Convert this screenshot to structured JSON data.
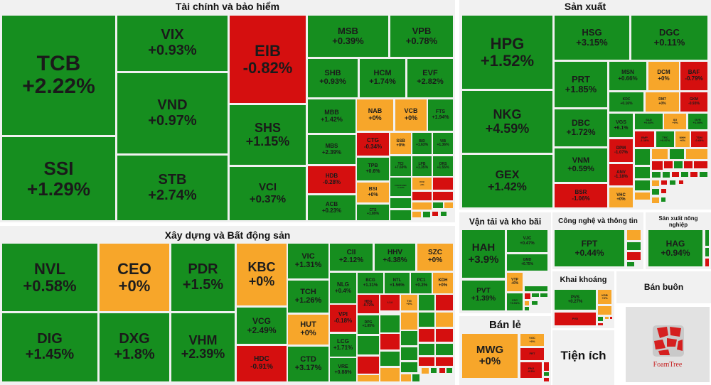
{
  "colors": {
    "up": "#168e1f",
    "down": "#d50f0f",
    "flat": "#f7a62a",
    "panel": "#f1f1f1"
  },
  "sections": {
    "finance": {
      "title": "Tài chính và bảo hiểm",
      "tiles": [
        {
          "t": "TCB",
          "c": "+2.22%",
          "s": "g"
        },
        {
          "t": "SSI",
          "c": "+1.29%",
          "s": "g"
        },
        {
          "t": "VIX",
          "c": "+0.93%",
          "s": "g"
        },
        {
          "t": "VND",
          "c": "+0.97%",
          "s": "g"
        },
        {
          "t": "STB",
          "c": "+2.74%",
          "s": "g"
        },
        {
          "t": "EIB",
          "c": "-0.82%",
          "s": "r"
        },
        {
          "t": "SHS",
          "c": "+1.15%",
          "s": "g"
        },
        {
          "t": "VCI",
          "c": "+0.37%",
          "s": "g"
        },
        {
          "t": "MSB",
          "c": "+0.39%",
          "s": "g"
        },
        {
          "t": "VPB",
          "c": "+0.78%",
          "s": "g"
        },
        {
          "t": "SHB",
          "c": "+0.93%",
          "s": "g"
        },
        {
          "t": "HCM",
          "c": "+1.74%",
          "s": "g"
        },
        {
          "t": "EVF",
          "c": "+2.82%",
          "s": "g"
        },
        {
          "t": "MBB",
          "c": "+1.42%",
          "s": "g"
        },
        {
          "t": "MBS",
          "c": "+2.39%",
          "s": "g"
        },
        {
          "t": "HDB",
          "c": "-0.28%",
          "s": "r"
        },
        {
          "t": "ACB",
          "c": "+0.23%",
          "s": "g"
        },
        {
          "t": "NAB",
          "c": "+0%",
          "s": "o"
        },
        {
          "t": "VCB",
          "c": "+0%",
          "s": "o"
        },
        {
          "t": "FTS",
          "c": "+1.94%",
          "s": "g"
        },
        {
          "t": "CTG",
          "c": "-0.34%",
          "s": "r"
        },
        {
          "t": "SSB",
          "c": "+0%",
          "s": "o"
        },
        {
          "t": "BID",
          "c": "+1.63%",
          "s": "g"
        },
        {
          "t": "VIB",
          "c": "+1.36%",
          "s": "g"
        },
        {
          "t": "TPB",
          "c": "+0.6%",
          "s": "g"
        },
        {
          "t": "TCI",
          "c": "+7.69%",
          "s": "g"
        },
        {
          "t": "LPB",
          "c": "+1.35%",
          "s": "g"
        },
        {
          "t": "ORS",
          "c": "+1.55%",
          "s": "g"
        },
        {
          "t": "BSI",
          "c": "+0%",
          "s": "o"
        },
        {
          "t": "CTS",
          "c": "+1.89%",
          "s": "g"
        },
        {
          "t": "FUEVFVND",
          "c": "+1.12%",
          "s": "g"
        },
        {
          "t": "OCB",
          "c": "+0%",
          "s": "o"
        }
      ]
    },
    "construction": {
      "title": "Xây dựng và Bất động sản",
      "tiles": [
        {
          "t": "NVL",
          "c": "+0.58%",
          "s": "g"
        },
        {
          "t": "DIG",
          "c": "+1.45%",
          "s": "g"
        },
        {
          "t": "CEO",
          "c": "+0%",
          "s": "o"
        },
        {
          "t": "DXG",
          "c": "+1.8%",
          "s": "g"
        },
        {
          "t": "PDR",
          "c": "+1.5%",
          "s": "g"
        },
        {
          "t": "VHM",
          "c": "+2.39%",
          "s": "g"
        },
        {
          "t": "KBC",
          "c": "+0%",
          "s": "o"
        },
        {
          "t": "VCG",
          "c": "+2.49%",
          "s": "g"
        },
        {
          "t": "HDC",
          "c": "-0.91%",
          "s": "r"
        },
        {
          "t": "VIC",
          "c": "+1.31%",
          "s": "g"
        },
        {
          "t": "TCH",
          "c": "+1.26%",
          "s": "g"
        },
        {
          "t": "HUT",
          "c": "+0%",
          "s": "o"
        },
        {
          "t": "CTD",
          "c": "+3.17%",
          "s": "g"
        },
        {
          "t": "CII",
          "c": "+2.12%",
          "s": "g"
        },
        {
          "t": "HHV",
          "c": "+4.38%",
          "s": "g"
        },
        {
          "t": "SZC",
          "c": "+0%",
          "s": "o"
        },
        {
          "t": "NLG",
          "c": "+0.4%",
          "s": "g"
        },
        {
          "t": "BCG",
          "c": "+1.31%",
          "s": "g"
        },
        {
          "t": "NTL",
          "c": "+1.56%",
          "s": "g"
        },
        {
          "t": "PC1",
          "c": "+0.2%",
          "s": "g"
        },
        {
          "t": "KDH",
          "c": "+0%",
          "s": "o"
        },
        {
          "t": "VPI",
          "c": "-0.18%",
          "s": "r"
        },
        {
          "t": "LCG",
          "c": "+1.71%",
          "s": "g"
        },
        {
          "t": "VRE",
          "c": "+0.88%",
          "s": "g"
        },
        {
          "t": "HDG",
          "c": "-0.72%",
          "s": "r"
        },
        {
          "t": "L14",
          "c": "",
          "s": "r"
        },
        {
          "t": "TIG",
          "c": "+0%",
          "s": "o"
        },
        {
          "t": "DPG",
          "c": "+1.05%",
          "s": "g"
        }
      ]
    },
    "production": {
      "title": "Sản xuất",
      "tiles": [
        {
          "t": "HPG",
          "c": "+1.52%",
          "s": "g"
        },
        {
          "t": "NKG",
          "c": "+4.59%",
          "s": "g"
        },
        {
          "t": "GEX",
          "c": "+1.42%",
          "s": "g"
        },
        {
          "t": "HSG",
          "c": "+3.15%",
          "s": "g"
        },
        {
          "t": "DGC",
          "c": "+0.11%",
          "s": "g"
        },
        {
          "t": "PRT",
          "c": "+1.85%",
          "s": "g"
        },
        {
          "t": "DBC",
          "c": "+1.72%",
          "s": "g"
        },
        {
          "t": "VNM",
          "c": "+0.59%",
          "s": "g"
        },
        {
          "t": "BSR",
          "c": "-1.06%",
          "s": "r"
        },
        {
          "t": "MSN",
          "c": "+0.66%",
          "s": "g"
        },
        {
          "t": "DCM",
          "c": "+0%",
          "s": "o"
        },
        {
          "t": "BAF",
          "c": "-0.79%",
          "s": "r"
        },
        {
          "t": "KDC",
          "c": "+0.16%",
          "s": "g"
        },
        {
          "t": "DM7",
          "c": "+0%",
          "s": "o"
        },
        {
          "t": "GKM",
          "c": "-0.93%",
          "s": "r"
        },
        {
          "t": "VGS",
          "c": "+6.1%",
          "s": "g"
        },
        {
          "t": "SAD",
          "c": "+0.83%",
          "s": "g"
        },
        {
          "t": "IDI",
          "c": "+0%",
          "s": "o"
        },
        {
          "t": "GVR",
          "c": "+1.55%",
          "s": "g"
        },
        {
          "t": "DPM",
          "c": "-1.07%",
          "s": "r"
        },
        {
          "t": "BMP",
          "c": "-1.18%",
          "s": "r"
        },
        {
          "t": "TRC",
          "c": "+0.97%",
          "s": "g"
        },
        {
          "t": "NHH",
          "c": "+0%",
          "s": "o"
        },
        {
          "t": "TDM",
          "c": "-0.65%",
          "s": "r"
        },
        {
          "t": "ANV",
          "c": "-1.18%",
          "s": "r"
        },
        {
          "t": "VHC",
          "c": "+0%",
          "s": "o"
        }
      ]
    },
    "transport": {
      "title": "Vận tải và kho bãi",
      "tiles": [
        {
          "t": "HAH",
          "c": "+3.9%",
          "s": "g"
        },
        {
          "t": "PVT",
          "c": "+1.39%",
          "s": "g"
        },
        {
          "t": "VJC",
          "c": "+0.47%",
          "s": "g"
        },
        {
          "t": "GMD",
          "c": "+0.75%",
          "s": "g"
        },
        {
          "t": "VTP",
          "c": "+0%",
          "s": "o"
        },
        {
          "t": "VSC",
          "c": "+3.51%",
          "s": "g"
        }
      ]
    },
    "retail": {
      "title": "Bán lẻ",
      "tiles": [
        {
          "t": "MWG",
          "c": "+0%",
          "s": "o"
        },
        {
          "t": "VGC",
          "c": "+0%",
          "s": "o"
        },
        {
          "t": "FRT",
          "c": "",
          "s": "r"
        },
        {
          "t": "PNJ",
          "c": "-0.5%",
          "s": "r"
        }
      ]
    },
    "tech": {
      "title": "Công nghệ và thông tin",
      "tiles": [
        {
          "t": "FPT",
          "c": "+0.44%",
          "s": "g"
        }
      ]
    },
    "agri": {
      "title": "Sản xuất nông nghiệp",
      "tiles": [
        {
          "t": "HAG",
          "c": "+0.94%",
          "s": "g"
        }
      ]
    },
    "mining": {
      "title": "Khai khoáng",
      "tiles": [
        {
          "t": "PVS",
          "c": "+0.27%",
          "s": "g"
        },
        {
          "t": "KSB",
          "c": "+0%",
          "s": "o"
        },
        {
          "t": "PVD",
          "c": "",
          "s": "r"
        }
      ]
    },
    "wholesale": {
      "title": "Bán buôn"
    },
    "utilities": {
      "title": "Tiện ích"
    }
  },
  "logo_text": "FoamTree"
}
